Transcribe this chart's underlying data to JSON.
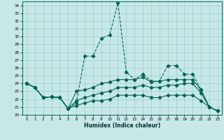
{
  "xlabel": "Humidex (Indice chaleur)",
  "bg_color": "#c8e8e8",
  "grid_color": "#99cccc",
  "line_color": "#006655",
  "xlim": [
    -0.5,
    23.5
  ],
  "ylim": [
    20,
    34.5
  ],
  "xticks": [
    0,
    1,
    2,
    3,
    4,
    5,
    6,
    7,
    8,
    9,
    10,
    11,
    12,
    13,
    14,
    15,
    16,
    17,
    18,
    19,
    20,
    21,
    22,
    23
  ],
  "yticks": [
    20,
    21,
    22,
    23,
    24,
    25,
    26,
    27,
    28,
    29,
    30,
    31,
    32,
    33,
    34
  ],
  "series1": [
    24.0,
    23.5,
    22.2,
    22.3,
    22.2,
    20.8,
    21.5,
    27.5,
    27.5,
    29.8,
    30.2,
    34.3,
    25.5,
    24.5,
    25.2,
    24.3,
    24.3,
    26.3,
    26.3,
    25.2,
    25.2,
    23.2,
    21.0,
    20.5
  ],
  "series2": [
    24.0,
    23.5,
    22.2,
    22.3,
    22.2,
    20.8,
    23.0,
    23.2,
    23.5,
    24.0,
    24.2,
    24.5,
    24.5,
    24.5,
    24.8,
    24.2,
    24.3,
    24.5,
    24.5,
    24.5,
    24.5,
    23.2,
    21.0,
    20.5
  ],
  "series3": [
    24.0,
    23.5,
    22.2,
    22.3,
    22.2,
    20.8,
    21.8,
    22.2,
    22.5,
    22.8,
    23.0,
    23.5,
    23.5,
    23.5,
    23.8,
    23.5,
    23.5,
    23.8,
    23.8,
    24.0,
    24.0,
    22.8,
    21.0,
    20.5
  ],
  "series4": [
    24.0,
    23.5,
    22.2,
    22.3,
    22.2,
    20.8,
    21.2,
    21.5,
    21.8,
    21.8,
    22.0,
    22.5,
    22.5,
    22.5,
    22.5,
    22.2,
    22.2,
    22.5,
    22.5,
    22.5,
    22.5,
    21.8,
    21.0,
    20.5
  ]
}
